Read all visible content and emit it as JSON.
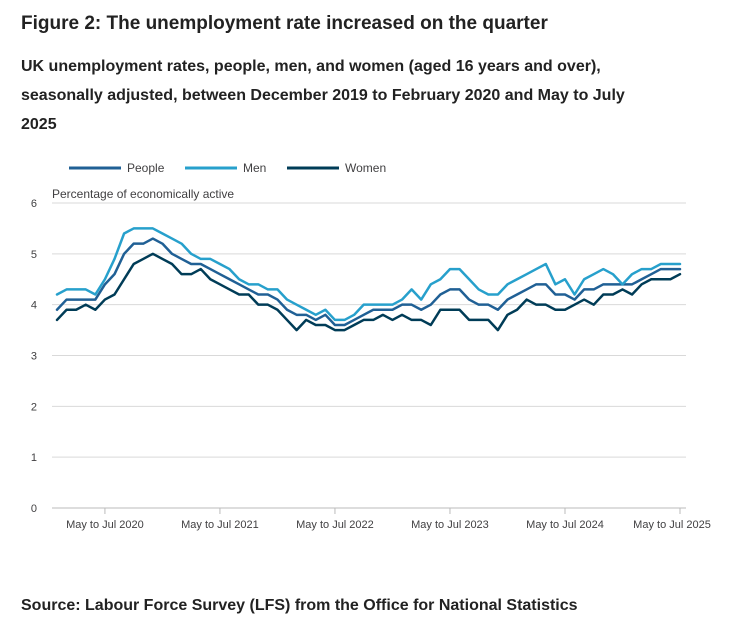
{
  "figure_title": "Figure 2: The unemployment rate increased on the quarter",
  "chart_data": {
    "type": "line",
    "title": "UK unemployment rates, people, men, and women (aged 16 years and over), seasonally adjusted, between December 2019 to February 2020 and May to July 2025",
    "ylabel": "Percentage of economically active",
    "xlabel": "",
    "ylim": [
      0,
      6
    ],
    "yticks": [
      "0",
      "1",
      "2",
      "3",
      "4",
      "5",
      "6"
    ],
    "x_tick_labels": [
      "May to Jul 2020",
      "May to Jul 2021",
      "May to Jul 2022",
      "May to Jul 2023",
      "May to Jul 2024",
      "May to Jul 2025"
    ],
    "x_tick_indices": [
      5,
      17,
      29,
      41,
      53,
      65
    ],
    "x_count": 66,
    "x_start": "Dec to Feb 2020",
    "x_end": "May to Jul 2025",
    "legend_position": "top-left",
    "series": [
      {
        "name": "People",
        "color": "#206095",
        "values": [
          3.9,
          4.1,
          4.1,
          4.1,
          4.1,
          4.4,
          4.6,
          5.0,
          5.2,
          5.2,
          5.3,
          5.2,
          5.0,
          4.9,
          4.8,
          4.8,
          4.7,
          4.6,
          4.5,
          4.4,
          4.3,
          4.2,
          4.2,
          4.1,
          3.9,
          3.8,
          3.8,
          3.7,
          3.8,
          3.6,
          3.6,
          3.7,
          3.8,
          3.9,
          3.9,
          3.9,
          4.0,
          4.0,
          3.9,
          4.0,
          4.2,
          4.3,
          4.3,
          4.1,
          4.0,
          4.0,
          3.9,
          4.1,
          4.2,
          4.3,
          4.4,
          4.4,
          4.2,
          4.2,
          4.1,
          4.3,
          4.3,
          4.4,
          4.4,
          4.4,
          4.4,
          4.5,
          4.6,
          4.7,
          4.7,
          4.7
        ]
      },
      {
        "name": "Men",
        "color": "#27a0cc",
        "values": [
          4.2,
          4.3,
          4.3,
          4.3,
          4.2,
          4.5,
          4.9,
          5.4,
          5.5,
          5.5,
          5.5,
          5.4,
          5.3,
          5.2,
          5.0,
          4.9,
          4.9,
          4.8,
          4.7,
          4.5,
          4.4,
          4.4,
          4.3,
          4.3,
          4.1,
          4.0,
          3.9,
          3.8,
          3.9,
          3.7,
          3.7,
          3.8,
          4.0,
          4.0,
          4.0,
          4.0,
          4.1,
          4.3,
          4.1,
          4.4,
          4.5,
          4.7,
          4.7,
          4.5,
          4.3,
          4.2,
          4.2,
          4.4,
          4.5,
          4.6,
          4.7,
          4.8,
          4.4,
          4.5,
          4.2,
          4.5,
          4.6,
          4.7,
          4.6,
          4.4,
          4.6,
          4.7,
          4.7,
          4.8,
          4.8,
          4.8
        ]
      },
      {
        "name": "Women",
        "color": "#003c57",
        "values": [
          3.7,
          3.9,
          3.9,
          4.0,
          3.9,
          4.1,
          4.2,
          4.5,
          4.8,
          4.9,
          5.0,
          4.9,
          4.8,
          4.6,
          4.6,
          4.7,
          4.5,
          4.4,
          4.3,
          4.2,
          4.2,
          4.0,
          4.0,
          3.9,
          3.7,
          3.5,
          3.7,
          3.6,
          3.6,
          3.5,
          3.5,
          3.6,
          3.7,
          3.7,
          3.8,
          3.7,
          3.8,
          3.7,
          3.7,
          3.6,
          3.9,
          3.9,
          3.9,
          3.7,
          3.7,
          3.7,
          3.5,
          3.8,
          3.9,
          4.1,
          4.0,
          4.0,
          3.9,
          3.9,
          4.0,
          4.1,
          4.0,
          4.2,
          4.2,
          4.3,
          4.2,
          4.4,
          4.5,
          4.5,
          4.5,
          4.6
        ]
      }
    ]
  },
  "source": "Source: Labour Force Survey (LFS) from the Office for National Statistics"
}
